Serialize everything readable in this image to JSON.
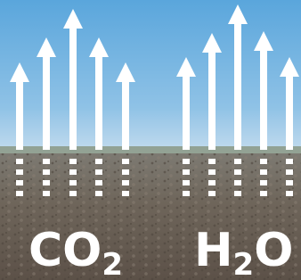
{
  "left_label": {
    "main": "CO",
    "subscript": "2"
  },
  "right_label": {
    "main": "H",
    "subscript": "2",
    "tail": "O"
  }
}
